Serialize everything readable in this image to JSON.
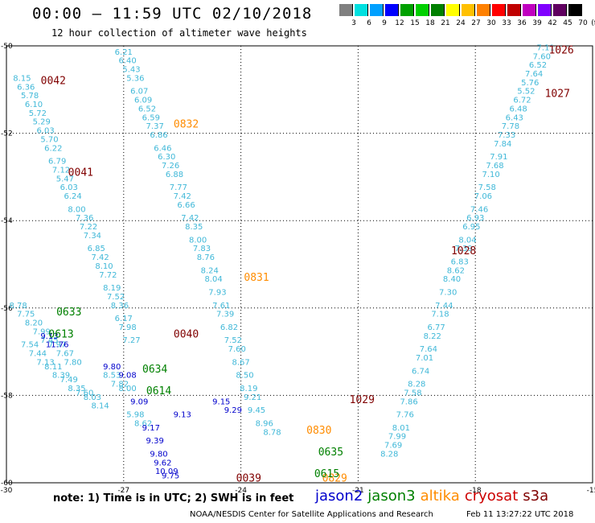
{
  "header": {
    "title": "00:00 – 11:59 UTC 02/10/2018",
    "subtitle": "12 hour collection of altimeter wave heights"
  },
  "colorbar": {
    "colors": [
      "#808080",
      "#00e0e0",
      "#00a0ff",
      "#0000ff",
      "#00a000",
      "#00d000",
      "#008000",
      "#ffff00",
      "#ffc000",
      "#ff8000",
      "#ff0000",
      "#c00000",
      "#c000c0",
      "#8000ff",
      "#600060",
      "#000000"
    ],
    "ticks": [
      "3",
      "6",
      "9",
      "12",
      "15",
      "18",
      "21",
      "24",
      "27",
      "30",
      "33",
      "36",
      "39",
      "42",
      "45",
      "70"
    ],
    "unit": "(ft)"
  },
  "footer": {
    "note": "note: 1) Time is in UTC; 2) SWH is in feet",
    "satellites": [
      {
        "name": "jason2",
        "color": "#0000cc"
      },
      {
        "name": "jason3",
        "color": "#008000"
      },
      {
        "name": "altika",
        "color": "#ff8c00"
      },
      {
        "name": "cryosat",
        "color": "#cc0000"
      },
      {
        "name": "s3a",
        "color": "#800000"
      }
    ],
    "credit": "NOAA/NESDIS Center for Satellite Applications and Research",
    "timestamp": "Feb 11 13:27:22 UTC 2018"
  },
  "chart_data": {
    "type": "scatter",
    "title": "12 hour collection of altimeter wave heights",
    "xlabel": "",
    "ylabel": "",
    "xlim": [
      -30,
      -15
    ],
    "ylim": [
      -60,
      -50
    ],
    "xticks": [
      "-30",
      "-27",
      "-24",
      "-21",
      "-18",
      "-15"
    ],
    "yticks": [
      "-50",
      "-52",
      "-54",
      "-56",
      "-58",
      "-60"
    ],
    "grid": true,
    "pass_labels": [
      {
        "text": "1026",
        "x": -15.8,
        "y": -50.1,
        "color": "#800000"
      },
      {
        "text": "1027",
        "x": -15.9,
        "y": -51.1,
        "color": "#800000"
      },
      {
        "text": "1028",
        "x": -18.3,
        "y": -54.7,
        "color": "#800000"
      },
      {
        "text": "1029",
        "x": -20.9,
        "y": -58.1,
        "color": "#800000"
      },
      {
        "text": "0042",
        "x": -28.8,
        "y": -50.8,
        "color": "#800000"
      },
      {
        "text": "0041",
        "x": -28.1,
        "y": -52.9,
        "color": "#800000"
      },
      {
        "text": "0040",
        "x": -25.4,
        "y": -56.6,
        "color": "#800000"
      },
      {
        "text": "0039",
        "x": -23.8,
        "y": -59.9,
        "color": "#800000"
      },
      {
        "text": "0832",
        "x": -25.4,
        "y": -51.8,
        "color": "#ff8c00"
      },
      {
        "text": "0831",
        "x": -23.6,
        "y": -55.3,
        "color": "#ff8c00"
      },
      {
        "text": "0830",
        "x": -22.0,
        "y": -58.8,
        "color": "#ff8c00"
      },
      {
        "text": "0829",
        "x": -21.6,
        "y": -59.9,
        "color": "#ff8c00"
      },
      {
        "text": "0633",
        "x": -28.4,
        "y": -56.1,
        "color": "#008000"
      },
      {
        "text": "0634",
        "x": -26.2,
        "y": -57.4,
        "color": "#008000"
      },
      {
        "text": "0635",
        "x": -21.7,
        "y": -59.3,
        "color": "#008000"
      },
      {
        "text": "0613",
        "x": -28.6,
        "y": -56.6,
        "color": "#008000"
      },
      {
        "text": "0614",
        "x": -26.1,
        "y": -57.9,
        "color": "#008000"
      },
      {
        "text": "0615",
        "x": -21.8,
        "y": -59.8,
        "color": "#008000"
      }
    ],
    "series": [
      {
        "name": "0042",
        "color": "#40b8d8",
        "points": [
          {
            "x": -29.6,
            "y": -50.8,
            "v": "8.15"
          },
          {
            "x": -29.5,
            "y": -51.0,
            "v": "6.36"
          },
          {
            "x": -29.4,
            "y": -51.2,
            "v": "5.78"
          },
          {
            "x": -29.3,
            "y": -51.4,
            "v": "6.10"
          },
          {
            "x": -29.2,
            "y": -51.6,
            "v": "5.72"
          },
          {
            "x": -29.1,
            "y": -51.8,
            "v": "5.29"
          },
          {
            "x": -29.0,
            "y": -52.0,
            "v": "6.03"
          },
          {
            "x": -28.9,
            "y": -52.2,
            "v": "5.70"
          },
          {
            "x": -28.8,
            "y": -52.4,
            "v": "6.22"
          },
          {
            "x": -28.7,
            "y": -52.7,
            "v": "6.79"
          },
          {
            "x": -28.6,
            "y": -52.9,
            "v": "7.12"
          },
          {
            "x": -28.5,
            "y": -53.1,
            "v": "5.47"
          },
          {
            "x": -28.4,
            "y": -53.3,
            "v": "6.03"
          },
          {
            "x": -28.3,
            "y": -53.5,
            "v": "6.24"
          },
          {
            "x": -28.2,
            "y": -53.8,
            "v": "8.00"
          },
          {
            "x": -28.0,
            "y": -54.0,
            "v": "7.36"
          },
          {
            "x": -27.9,
            "y": -54.2,
            "v": "7.22"
          },
          {
            "x": -27.8,
            "y": -54.4,
            "v": "7.34"
          },
          {
            "x": -27.7,
            "y": -54.7,
            "v": "6.85"
          },
          {
            "x": -27.6,
            "y": -54.9,
            "v": "7.42"
          },
          {
            "x": -27.5,
            "y": -55.1,
            "v": "8.10"
          },
          {
            "x": -27.4,
            "y": -55.3,
            "v": "7.72"
          },
          {
            "x": -27.3,
            "y": -55.6,
            "v": "8.19"
          },
          {
            "x": -27.2,
            "y": -55.8,
            "v": "7.52"
          },
          {
            "x": -27.1,
            "y": -56.0,
            "v": "8.36"
          },
          {
            "x": -27.0,
            "y": -56.3,
            "v": "6.17"
          },
          {
            "x": -26.9,
            "y": -56.5,
            "v": "7.98"
          },
          {
            "x": -26.8,
            "y": -56.8,
            "v": "7.27"
          }
        ]
      },
      {
        "name": "0832",
        "color": "#40b8d8",
        "points": [
          {
            "x": -27.0,
            "y": -50.2,
            "v": "6.21"
          },
          {
            "x": -26.9,
            "y": -50.4,
            "v": "6.40"
          },
          {
            "x": -26.8,
            "y": -50.6,
            "v": "5.43"
          },
          {
            "x": -26.7,
            "y": -50.8,
            "v": "5.36"
          },
          {
            "x": -26.6,
            "y": -51.1,
            "v": "6.07"
          },
          {
            "x": -26.5,
            "y": -51.3,
            "v": "6.09"
          },
          {
            "x": -26.4,
            "y": -51.5,
            "v": "6.52"
          },
          {
            "x": -26.3,
            "y": -51.7,
            "v": "6.59"
          },
          {
            "x": -26.2,
            "y": -51.9,
            "v": "7.37"
          },
          {
            "x": -26.1,
            "y": -52.1,
            "v": "6.86"
          },
          {
            "x": -26.0,
            "y": -52.4,
            "v": "6.46"
          },
          {
            "x": -25.9,
            "y": -52.6,
            "v": "6.30"
          },
          {
            "x": -25.8,
            "y": -52.8,
            "v": "7.26"
          },
          {
            "x": -25.7,
            "y": -53.0,
            "v": "6.88"
          },
          {
            "x": -25.6,
            "y": -53.3,
            "v": "7.77"
          },
          {
            "x": -25.5,
            "y": -53.5,
            "v": "7.42"
          },
          {
            "x": -25.4,
            "y": -53.7,
            "v": "6.66"
          },
          {
            "x": -25.3,
            "y": -54.0,
            "v": "7.42"
          },
          {
            "x": -25.2,
            "y": -54.2,
            "v": "8.35"
          },
          {
            "x": -25.1,
            "y": -54.5,
            "v": "8.00"
          },
          {
            "x": -25.0,
            "y": -54.7,
            "v": "7.83"
          },
          {
            "x": -24.9,
            "y": -54.9,
            "v": "8.76"
          },
          {
            "x": -24.8,
            "y": -55.2,
            "v": "8.24"
          },
          {
            "x": -24.7,
            "y": -55.4,
            "v": "8.04"
          },
          {
            "x": -24.6,
            "y": -55.7,
            "v": "7.93"
          },
          {
            "x": -24.5,
            "y": -56.0,
            "v": "7.61"
          },
          {
            "x": -24.4,
            "y": -56.2,
            "v": "7.39"
          },
          {
            "x": -24.3,
            "y": -56.5,
            "v": "6.82"
          },
          {
            "x": -24.2,
            "y": -56.8,
            "v": "7.52"
          },
          {
            "x": -24.1,
            "y": -57.0,
            "v": "7.60"
          },
          {
            "x": -24.0,
            "y": -57.3,
            "v": "8.67"
          },
          {
            "x": -23.9,
            "y": -57.6,
            "v": "8.50"
          },
          {
            "x": -23.8,
            "y": -57.9,
            "v": "8.19"
          },
          {
            "x": -23.7,
            "y": -58.1,
            "v": "9.21"
          },
          {
            "x": -23.6,
            "y": -58.4,
            "v": "9.45"
          },
          {
            "x": -23.4,
            "y": -58.7,
            "v": "8.96"
          },
          {
            "x": -23.2,
            "y": -58.9,
            "v": "8.78"
          }
        ]
      },
      {
        "name": "1026",
        "color": "#40b8d8",
        "points": [
          {
            "x": -16.2,
            "y": -50.1,
            "v": "7.11"
          },
          {
            "x": -16.3,
            "y": -50.3,
            "v": "7.60"
          },
          {
            "x": -16.4,
            "y": -50.5,
            "v": "6.52"
          },
          {
            "x": -16.5,
            "y": -50.7,
            "v": "7.64"
          },
          {
            "x": -16.6,
            "y": -50.9,
            "v": "5.76"
          },
          {
            "x": -16.7,
            "y": -51.1,
            "v": "5.52"
          },
          {
            "x": -16.8,
            "y": -51.3,
            "v": "6.72"
          },
          {
            "x": -16.9,
            "y": -51.5,
            "v": "6.48"
          },
          {
            "x": -17.0,
            "y": -51.7,
            "v": "6.43"
          },
          {
            "x": -17.1,
            "y": -51.9,
            "v": "7.78"
          },
          {
            "x": -17.2,
            "y": -52.1,
            "v": "7.33"
          },
          {
            "x": -17.3,
            "y": -52.3,
            "v": "7.84"
          },
          {
            "x": -17.4,
            "y": -52.6,
            "v": "7.91"
          },
          {
            "x": -17.5,
            "y": -52.8,
            "v": "7.68"
          },
          {
            "x": -17.6,
            "y": -53.0,
            "v": "7.10"
          },
          {
            "x": -17.7,
            "y": -53.3,
            "v": "7.58"
          },
          {
            "x": -17.8,
            "y": -53.5,
            "v": "7.06"
          },
          {
            "x": -17.9,
            "y": -53.8,
            "v": "7.46"
          },
          {
            "x": -18.0,
            "y": -54.0,
            "v": "6.93"
          },
          {
            "x": -18.1,
            "y": -54.2,
            "v": "6.95"
          },
          {
            "x": -18.2,
            "y": -54.5,
            "v": "8.04"
          },
          {
            "x": -18.3,
            "y": -54.7,
            "v": "7.39"
          },
          {
            "x": -18.4,
            "y": -55.0,
            "v": "6.83"
          },
          {
            "x": -18.5,
            "y": -55.2,
            "v": "8.62"
          },
          {
            "x": -18.6,
            "y": -55.4,
            "v": "8.40"
          },
          {
            "x": -18.7,
            "y": -55.7,
            "v": "7.30"
          },
          {
            "x": -18.8,
            "y": -56.0,
            "v": "7.44"
          },
          {
            "x": -18.9,
            "y": -56.2,
            "v": "7.18"
          },
          {
            "x": -19.0,
            "y": -56.5,
            "v": "6.77"
          },
          {
            "x": -19.1,
            "y": -56.7,
            "v": "8.22"
          },
          {
            "x": -19.2,
            "y": -57.0,
            "v": "7.64"
          },
          {
            "x": -19.3,
            "y": -57.2,
            "v": "7.01"
          },
          {
            "x": -19.4,
            "y": -57.5,
            "v": "6.74"
          },
          {
            "x": -19.5,
            "y": -57.8,
            "v": "8.28"
          },
          {
            "x": -19.6,
            "y": -58.0,
            "v": "7.58"
          },
          {
            "x": -19.7,
            "y": -58.2,
            "v": "7.86"
          },
          {
            "x": -19.8,
            "y": -58.5,
            "v": "7.76"
          },
          {
            "x": -19.9,
            "y": -58.8,
            "v": "8.01"
          },
          {
            "x": -20.0,
            "y": -59.0,
            "v": "7.99"
          },
          {
            "x": -20.1,
            "y": -59.2,
            "v": "7.69"
          },
          {
            "x": -20.2,
            "y": -59.4,
            "v": "8.28"
          }
        ]
      },
      {
        "name": "0633",
        "color": "#40b8d8",
        "points": [
          {
            "x": -29.7,
            "y": -56.0,
            "v": "8.78"
          },
          {
            "x": -29.5,
            "y": -56.2,
            "v": "7.75"
          },
          {
            "x": -29.3,
            "y": -56.4,
            "v": "8.20"
          },
          {
            "x": -29.1,
            "y": -56.6,
            "v": "7.99"
          },
          {
            "x": -28.9,
            "y": -56.8,
            "v": "7.45"
          },
          {
            "x": -28.7,
            "y": -56.9,
            "v": "7.97"
          },
          {
            "x": -28.5,
            "y": -57.1,
            "v": "7.67"
          },
          {
            "x": -28.3,
            "y": -57.3,
            "v": "7.80"
          }
        ]
      },
      {
        "name": "0613",
        "color": "#40b8d8",
        "points": [
          {
            "x": -29.4,
            "y": -56.9,
            "v": "7.54"
          },
          {
            "x": -29.2,
            "y": -57.1,
            "v": "7.44"
          },
          {
            "x": -29.0,
            "y": -57.3,
            "v": "7.13"
          },
          {
            "x": -28.8,
            "y": -57.4,
            "v": "8.11"
          },
          {
            "x": -28.6,
            "y": -57.6,
            "v": "8.39"
          },
          {
            "x": -28.4,
            "y": -57.7,
            "v": "7.49"
          },
          {
            "x": -28.2,
            "y": -57.9,
            "v": "8.35"
          },
          {
            "x": -28.0,
            "y": -58.0,
            "v": "7.60"
          },
          {
            "x": -27.8,
            "y": -58.1,
            "v": "8.03"
          },
          {
            "x": -27.6,
            "y": -58.3,
            "v": "8.14"
          }
        ]
      },
      {
        "name": "0634",
        "color": "#40b8d8",
        "points": [
          {
            "x": -27.3,
            "y": -57.6,
            "v": "8.53"
          },
          {
            "x": -27.1,
            "y": -57.8,
            "v": "7.82"
          },
          {
            "x": -26.9,
            "y": -57.9,
            "v": "8.00"
          },
          {
            "x": -26.7,
            "y": -58.5,
            "v": "5.98"
          },
          {
            "x": -26.5,
            "y": -58.7,
            "v": "8.62"
          }
        ]
      },
      {
        "name": "0614",
        "color": "#0000cc",
        "points": [
          {
            "x": -28.9,
            "y": -56.7,
            "v": "9.13"
          },
          {
            "x": -28.7,
            "y": -56.9,
            "v": "11.76"
          },
          {
            "x": -27.3,
            "y": -57.4,
            "v": "9.80"
          },
          {
            "x": -26.9,
            "y": -57.6,
            "v": "9.08"
          },
          {
            "x": -26.6,
            "y": -58.2,
            "v": "9.09"
          },
          {
            "x": -26.3,
            "y": -58.8,
            "v": "9.17"
          },
          {
            "x": -26.2,
            "y": -59.1,
            "v": "9.39"
          },
          {
            "x": -26.1,
            "y": -59.4,
            "v": "9.80"
          },
          {
            "x": -26.0,
            "y": -59.6,
            "v": "9.62"
          },
          {
            "x": -25.9,
            "y": -59.8,
            "v": "10.09"
          },
          {
            "x": -25.8,
            "y": -59.9,
            "v": "9.75"
          },
          {
            "x": -25.5,
            "y": -58.5,
            "v": "9.13"
          },
          {
            "x": -24.5,
            "y": -58.2,
            "v": "9.15"
          },
          {
            "x": -24.2,
            "y": -58.4,
            "v": "9.29"
          }
        ]
      }
    ],
    "rest_of_swath_unreadable": true
  }
}
